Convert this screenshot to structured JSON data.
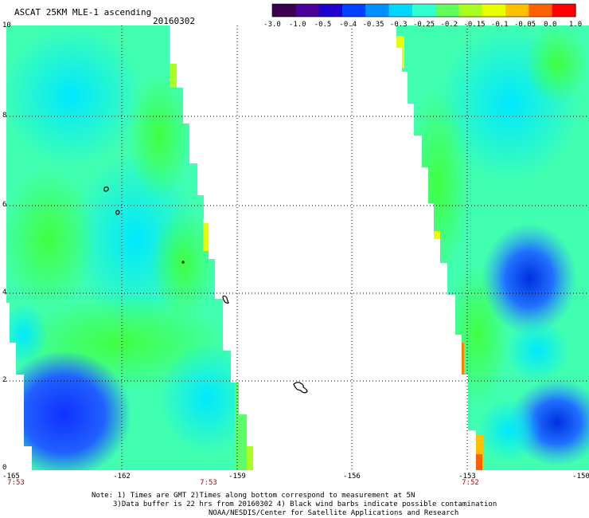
{
  "header": {
    "title": "ASCAT 25KM MLE-1 ascending",
    "date": "20160302"
  },
  "colorbar": {
    "labels": [
      "-3.0",
      "-1.0",
      "-0.5",
      "-0.4",
      "-0.35",
      "-0.3",
      "-0.25",
      "-0.2",
      "-0.15",
      "-0.1",
      "-0.05",
      "0.0",
      "1.0"
    ],
    "colors": [
      "#3a0050",
      "#4b0099",
      "#2000cc",
      "#0040ff",
      "#0090ff",
      "#00d8ff",
      "#30ffd0",
      "#60ff60",
      "#a8ff20",
      "#e8ff00",
      "#ffc000",
      "#ff6000",
      "#ff0000"
    ]
  },
  "map": {
    "y_ticks": [
      "10",
      "8",
      "6",
      "4",
      "2",
      "0"
    ],
    "x_ticks": [
      "-165",
      "-162",
      "-159",
      "-156",
      "-153",
      "-150"
    ],
    "time_labels": [
      "7:53",
      "7:53",
      "7:52"
    ]
  },
  "notes": {
    "line1": "Note: 1) Times are GMT 2)Times along bottom correspond to measurement at 5N",
    "line2": "3)Data buffer is 22 hrs from 20160302 4) Black wind barbs indicate possible contamination",
    "line3": "NOAA/NESDIS/Center for Satellite Applications and Research"
  }
}
